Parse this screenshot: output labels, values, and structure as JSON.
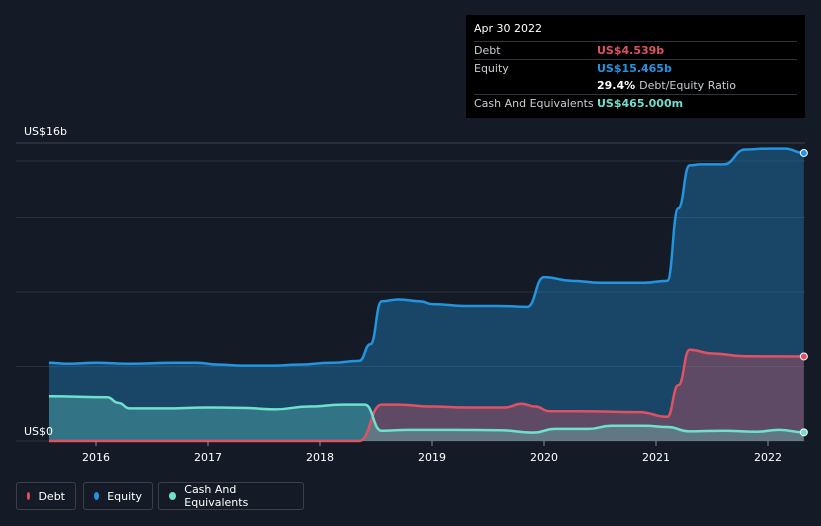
{
  "tooltip": {
    "date": "Apr 30 2022",
    "debt_label": "Debt",
    "debt_value": "US$4.539b",
    "equity_label": "Equity",
    "equity_value": "US$15.465b",
    "ratio_value": "29.4%",
    "ratio_label": "Debt/Equity Ratio",
    "cash_label": "Cash And Equivalents",
    "cash_value": "US$465.000m"
  },
  "legend": {
    "debt": "Debt",
    "equity": "Equity",
    "cash": "Cash And Equivalents"
  },
  "colors": {
    "debt": "#e05263",
    "equity": "#2394df",
    "cash": "#6ee0cd",
    "background": "#151b26"
  },
  "chart_data": {
    "type": "area",
    "ylabel_top": "US$16b",
    "ylabel_bottom": "US$0",
    "ylim": [
      0,
      16
    ],
    "x_ticks": [
      "2016",
      "2017",
      "2018",
      "2019",
      "2020",
      "2021",
      "2022"
    ],
    "grid": true,
    "series": [
      {
        "name": "Equity",
        "points": [
          [
            2015.58,
            4.2
          ],
          [
            2015.75,
            4.15
          ],
          [
            2016.0,
            4.2
          ],
          [
            2016.3,
            4.15
          ],
          [
            2016.7,
            4.2
          ],
          [
            2016.9,
            4.2
          ],
          [
            2017.1,
            4.1
          ],
          [
            2017.3,
            4.05
          ],
          [
            2017.6,
            4.05
          ],
          [
            2017.8,
            4.1
          ],
          [
            2018.1,
            4.2
          ],
          [
            2018.35,
            4.3
          ],
          [
            2018.45,
            5.2
          ],
          [
            2018.55,
            7.5
          ],
          [
            2018.7,
            7.6
          ],
          [
            2018.9,
            7.5
          ],
          [
            2019.0,
            7.35
          ],
          [
            2019.3,
            7.25
          ],
          [
            2019.6,
            7.25
          ],
          [
            2019.85,
            7.2
          ],
          [
            2020.0,
            8.8
          ],
          [
            2020.25,
            8.6
          ],
          [
            2020.5,
            8.5
          ],
          [
            2020.9,
            8.5
          ],
          [
            2021.1,
            8.6
          ],
          [
            2021.2,
            12.5
          ],
          [
            2021.3,
            14.8
          ],
          [
            2021.4,
            14.85
          ],
          [
            2021.6,
            14.85
          ],
          [
            2021.8,
            15.65
          ],
          [
            2022.0,
            15.7
          ],
          [
            2022.15,
            15.7
          ],
          [
            2022.32,
            15.465
          ]
        ]
      },
      {
        "name": "Debt",
        "points": [
          [
            2015.58,
            0
          ],
          [
            2018.35,
            0
          ],
          [
            2018.55,
            1.95
          ],
          [
            2018.7,
            1.95
          ],
          [
            2019.0,
            1.85
          ],
          [
            2019.3,
            1.8
          ],
          [
            2019.65,
            1.8
          ],
          [
            2019.8,
            2.0
          ],
          [
            2019.92,
            1.85
          ],
          [
            2020.05,
            1.6
          ],
          [
            2020.3,
            1.6
          ],
          [
            2020.85,
            1.55
          ],
          [
            2021.1,
            1.3
          ],
          [
            2021.2,
            3.0
          ],
          [
            2021.3,
            4.9
          ],
          [
            2021.5,
            4.7
          ],
          [
            2021.8,
            4.55
          ],
          [
            2022.32,
            4.539
          ]
        ]
      },
      {
        "name": "Cash And Equivalents",
        "points": [
          [
            2015.58,
            2.4
          ],
          [
            2016.1,
            2.35
          ],
          [
            2016.2,
            2.05
          ],
          [
            2016.3,
            1.75
          ],
          [
            2016.6,
            1.75
          ],
          [
            2017.0,
            1.8
          ],
          [
            2017.3,
            1.78
          ],
          [
            2017.6,
            1.7
          ],
          [
            2017.9,
            1.85
          ],
          [
            2018.2,
            1.95
          ],
          [
            2018.4,
            1.95
          ],
          [
            2018.55,
            0.55
          ],
          [
            2018.8,
            0.6
          ],
          [
            2019.2,
            0.6
          ],
          [
            2019.6,
            0.58
          ],
          [
            2019.9,
            0.45
          ],
          [
            2020.1,
            0.65
          ],
          [
            2020.4,
            0.65
          ],
          [
            2020.6,
            0.82
          ],
          [
            2020.9,
            0.82
          ],
          [
            2021.1,
            0.75
          ],
          [
            2021.3,
            0.52
          ],
          [
            2021.6,
            0.55
          ],
          [
            2021.9,
            0.5
          ],
          [
            2022.1,
            0.6
          ],
          [
            2022.32,
            0.465
          ]
        ]
      }
    ]
  }
}
